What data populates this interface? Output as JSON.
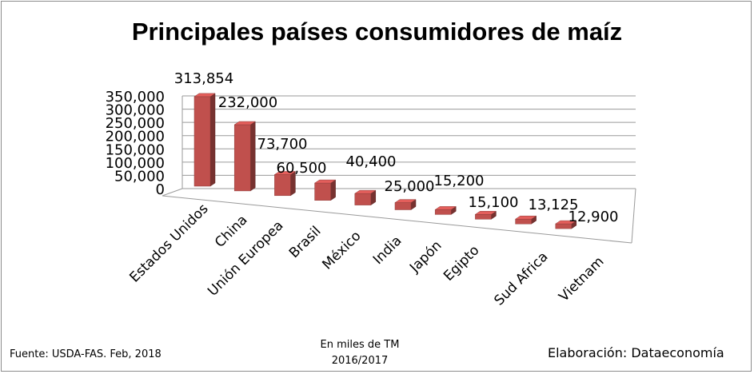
{
  "chart_data": {
    "type": "bar",
    "title": "Principales países consumidores de maíz",
    "categories": [
      "Estados Unidos",
      "China",
      "Unión Europea",
      "Brasil",
      "México",
      "India",
      "Japón",
      "Egipto",
      "Sud Africa",
      "Vietnam"
    ],
    "values": [
      313854,
      232000,
      73700,
      60500,
      40400,
      25000,
      15200,
      15100,
      13125,
      12900
    ],
    "data_labels": [
      "313,854",
      "232,000",
      "73,700",
      "60,500",
      "40,400",
      "25,000",
      "15,200",
      "15,100",
      "13,125",
      "12,900"
    ],
    "y_ticks": [
      "0",
      "50,000",
      "100,000",
      "150,000",
      "200,000",
      "250,000",
      "300,000",
      "350,000"
    ],
    "ylim": [
      0,
      350000
    ],
    "grid": true,
    "bar_color": "#c0504d",
    "style": "3d-column"
  },
  "footer": {
    "source": "Fuente:  USDA-FAS. Feb, 2018",
    "units": "En miles de TM",
    "period": "2016/2017",
    "credit": "Elaboración: Dataeconomía"
  }
}
